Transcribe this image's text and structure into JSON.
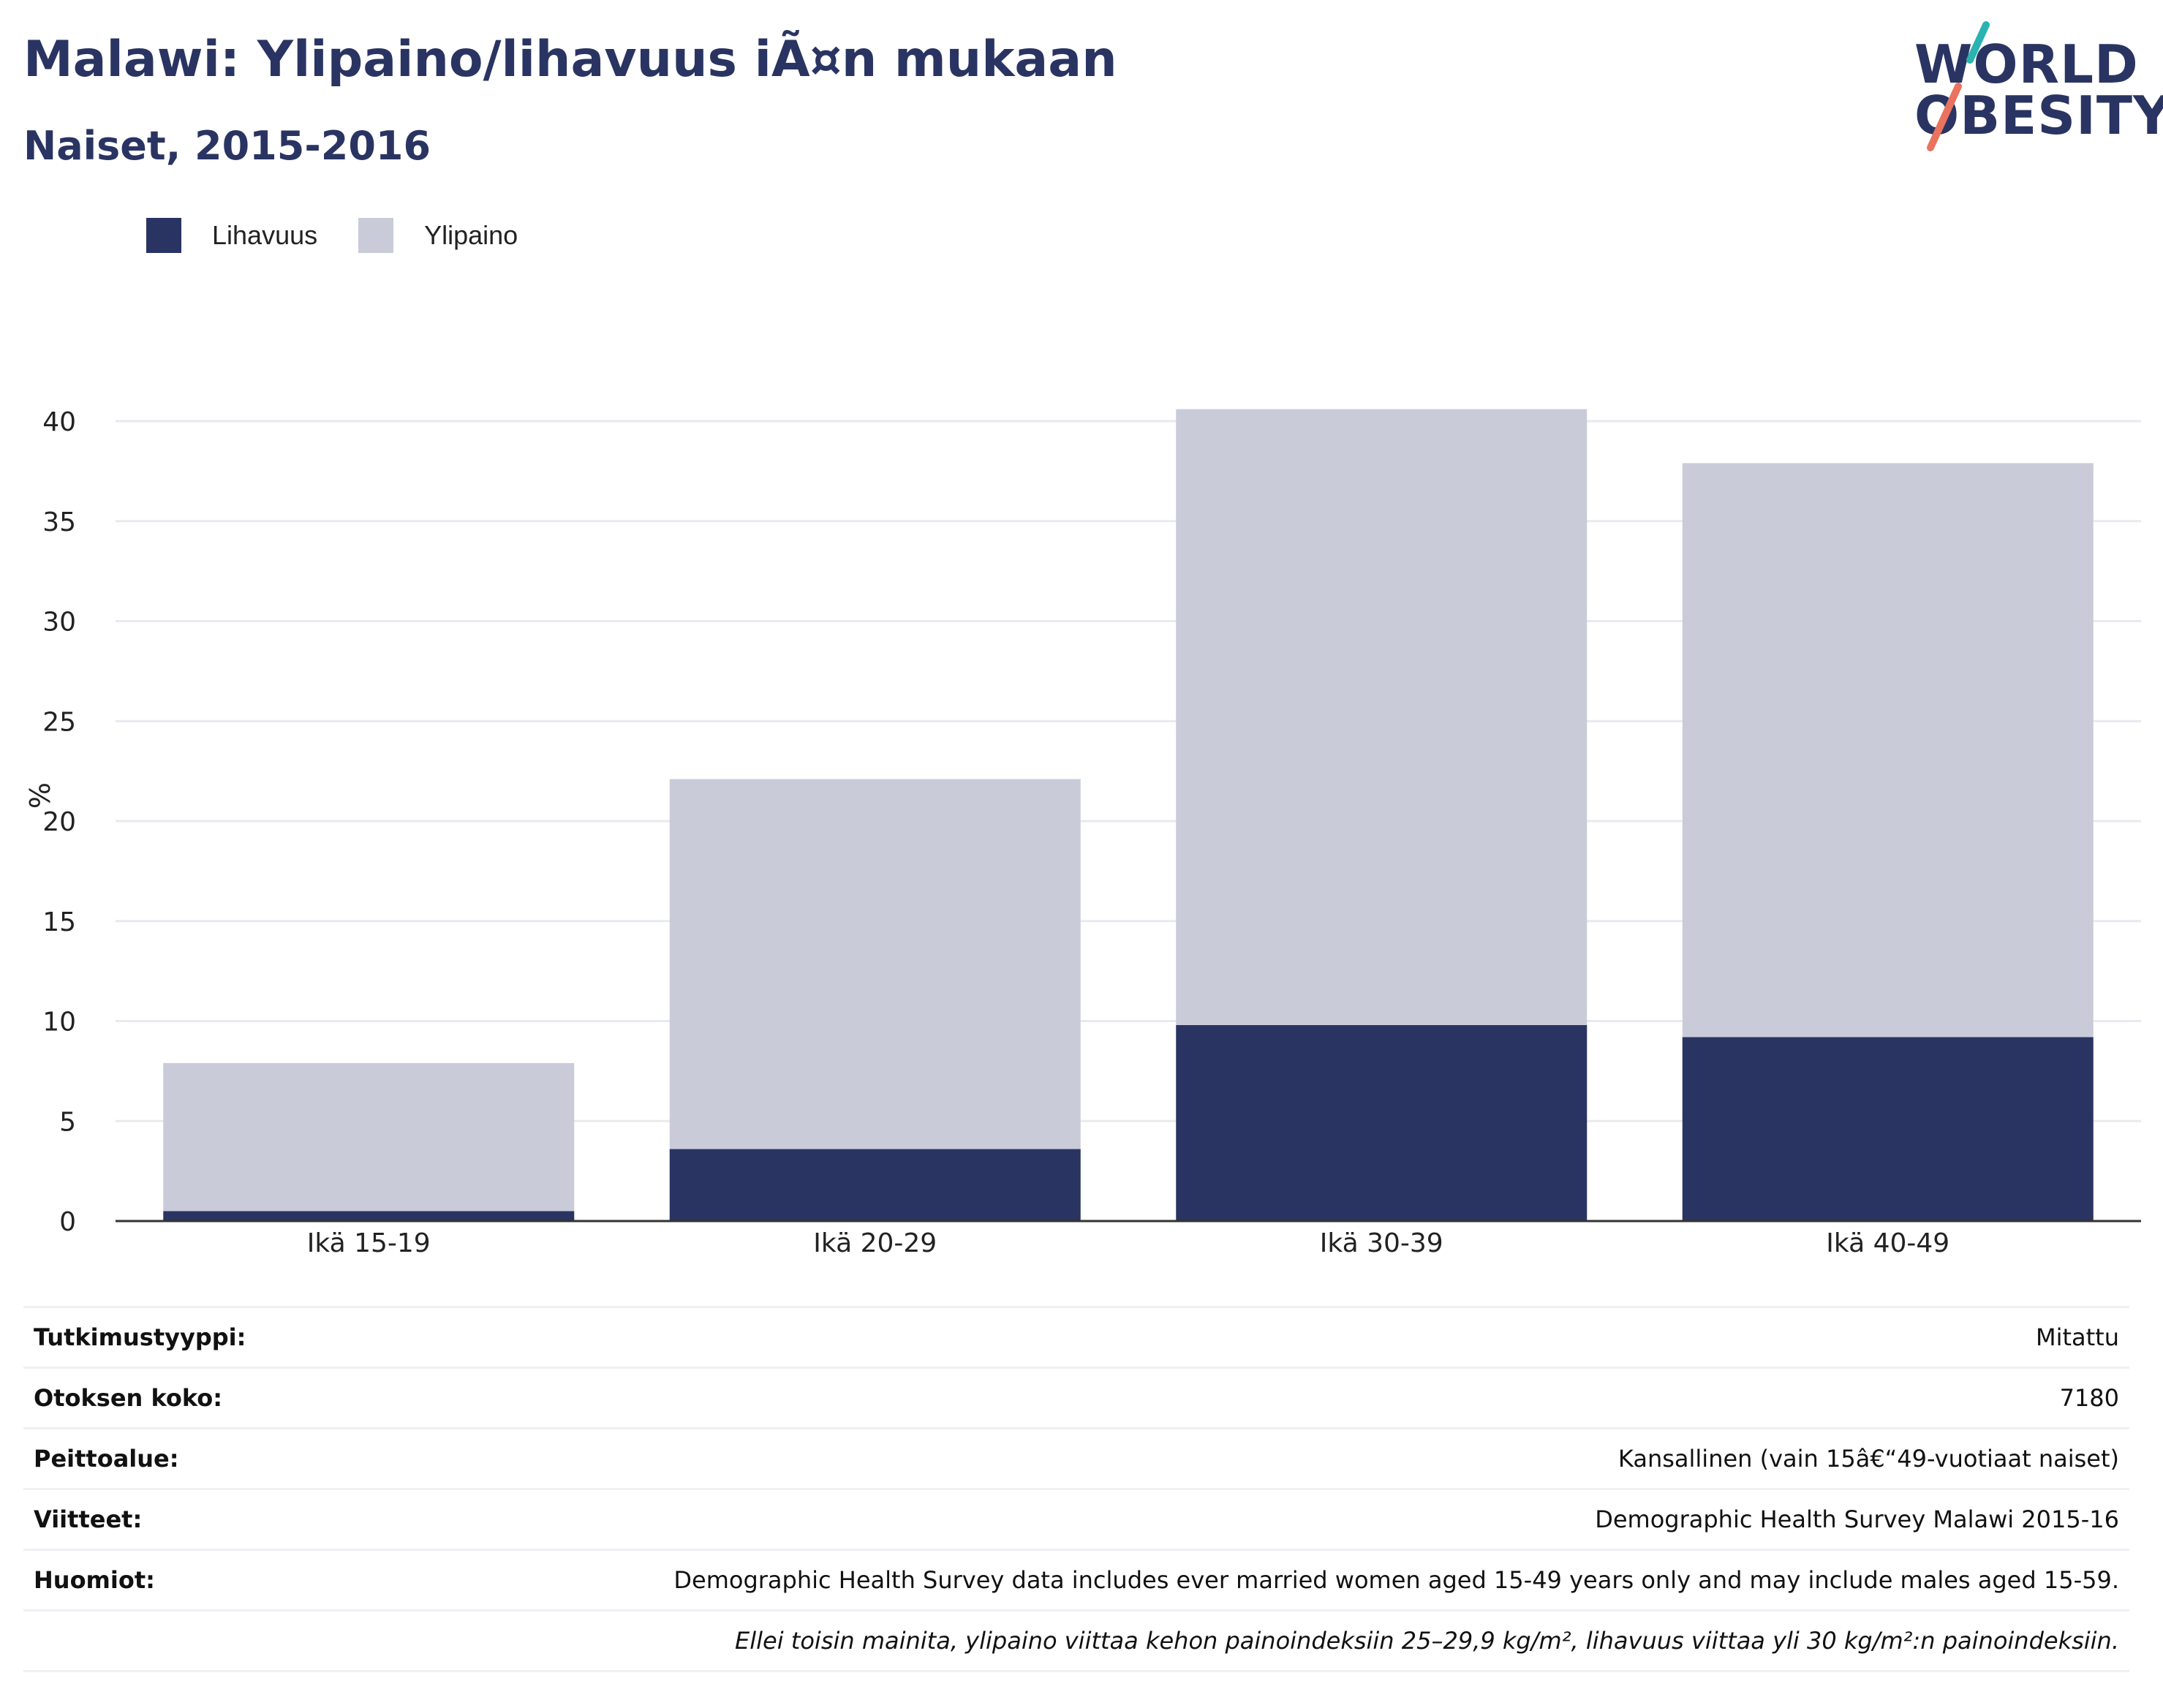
{
  "header": {
    "title": "Malawi: Ylipaino/lihavuus iÃ¤n mukaan",
    "subtitle": "Naiset, 2015-2016"
  },
  "logo": {
    "line1": "WORLD",
    "line2": "OBESITY",
    "colors": {
      "text": "#2a3462",
      "slash_top": "#2ab3b0",
      "slash_bottom": "#e9735f"
    }
  },
  "colors": {
    "obesity": "#2a3462",
    "overweight": "#c9ccd8",
    "grid": "#e8eaef",
    "axis": "#333333"
  },
  "chart_data": {
    "type": "bar",
    "stacked": true,
    "categories": [
      "Ikä 15-19",
      "Ikä 20-29",
      "Ikä 30-39",
      "Ikä 40-49"
    ],
    "series": [
      {
        "name": "Lihavuus",
        "values": [
          0.5,
          3.6,
          9.8,
          9.2
        ]
      },
      {
        "name": "Ylipaino",
        "values": [
          7.4,
          18.5,
          30.8,
          28.7
        ]
      }
    ],
    "ylabel": "%",
    "ylim": [
      0,
      42
    ],
    "yticks": [
      0,
      5,
      10,
      15,
      20,
      25,
      30,
      35,
      40
    ],
    "grid": true,
    "legend_position": "top-left"
  },
  "info": {
    "rows": [
      {
        "label": "Tutkimustyyppi:",
        "value": "Mitattu"
      },
      {
        "label": "Otoksen koko:",
        "value": "7180"
      },
      {
        "label": "Peittoalue:",
        "value": "Kansallinen (vain 15â€“49-vuotiaat naiset)"
      },
      {
        "label": "Viitteet:",
        "value": "Demographic Health Survey Malawi 2015-16"
      },
      {
        "label": "Huomiot:",
        "value": "Demographic Health Survey data includes ever married women aged 15-49 years only and may include males aged 15-59."
      }
    ],
    "footnote": "Ellei toisin mainita, ylipaino viittaa kehon painoindeksiin 25–29,9 kg/m², lihavuus viittaa yli 30 kg/m²:n painoindeksiin."
  }
}
